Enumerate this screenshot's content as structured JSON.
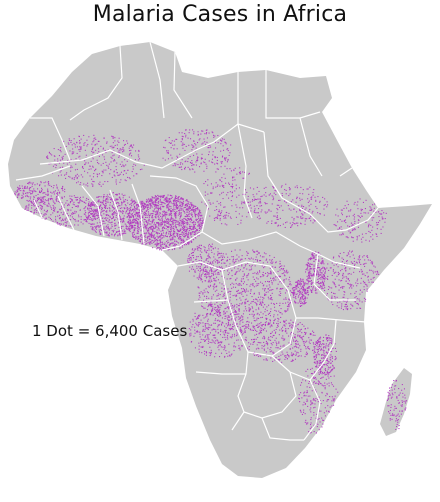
{
  "title": "Malaria Cases in Africa",
  "legend": {
    "text": "1 Dot = 6,400 Cases"
  },
  "colors": {
    "land": "#c9c9c9",
    "border": "#ffffff",
    "dot": "#b23fc0"
  }
}
